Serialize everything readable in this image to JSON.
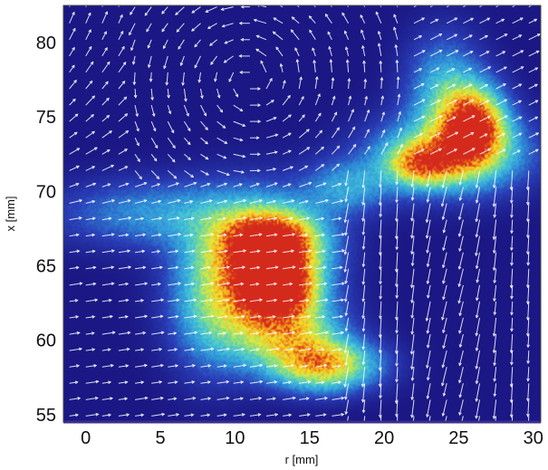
{
  "chart_data": {
    "type": "heatmap",
    "title": "",
    "xlabel": "r [mm]",
    "ylabel": "x [mm]",
    "xlim": [
      -1.5,
      30.5
    ],
    "ylim": [
      54.5,
      82.5
    ],
    "xticks": [
      0,
      5,
      10,
      15,
      20,
      25,
      30
    ],
    "yticks": [
      55,
      60,
      65,
      70,
      75,
      80
    ],
    "grid": false,
    "legend": "none",
    "colormap": [
      "#1b1784",
      "#2a3fb8",
      "#2f8fd8",
      "#44c6d8",
      "#8fe07a",
      "#f0e830",
      "#f7a21b",
      "#d42a1c"
    ],
    "background_color": "#1b1784",
    "vector_color": "#ffffff",
    "intensity_blobs": [
      {
        "r": 12.5,
        "x": 66.5,
        "sr": 2.2,
        "sx": 1.4,
        "peak": 0.95
      },
      {
        "r": 12.8,
        "x": 63.5,
        "sr": 1.8,
        "sx": 1.3,
        "peak": 1.0
      },
      {
        "r": 11.5,
        "x": 65.0,
        "sr": 3.0,
        "sx": 3.0,
        "peak": 0.6
      },
      {
        "r": 16.0,
        "x": 58.3,
        "sr": 2.5,
        "sx": 1.2,
        "peak": 0.75
      },
      {
        "r": 13.5,
        "x": 60.5,
        "sr": 2.5,
        "sx": 1.5,
        "peak": 0.55
      },
      {
        "r": 8.5,
        "x": 62.0,
        "sr": 2.0,
        "sx": 3.0,
        "peak": 0.35
      },
      {
        "r": 26.0,
        "x": 74.5,
        "sr": 1.5,
        "sx": 1.8,
        "peak": 0.9
      },
      {
        "r": 24.5,
        "x": 72.5,
        "sr": 3.5,
        "sx": 1.8,
        "peak": 0.6
      },
      {
        "r": 22.5,
        "x": 71.8,
        "sr": 1.6,
        "sx": 1.0,
        "peak": 0.55
      },
      {
        "r": 24.0,
        "x": 77.0,
        "sr": 1.8,
        "sx": 2.5,
        "peak": 0.35
      },
      {
        "r": 5.0,
        "x": 68.5,
        "sr": 5.0,
        "sx": 1.6,
        "peak": 0.3
      },
      {
        "r": 17.5,
        "x": 70.3,
        "sr": 2.0,
        "sx": 1.3,
        "peak": 0.3
      }
    ],
    "vector_field_regions": [
      {
        "region": "left",
        "r_range": [
          -1.5,
          9
        ],
        "direction": "rightward, curving upward near top"
      },
      {
        "region": "upper-middle",
        "r_range": [
          5,
          20
        ],
        "x_range": [
          72,
          82.5
        ],
        "direction": "circulating vortex"
      },
      {
        "region": "right",
        "r_range": [
          17,
          30.5
        ],
        "x_range": [
          54.5,
          72
        ],
        "direction": "downward, dense"
      }
    ]
  }
}
